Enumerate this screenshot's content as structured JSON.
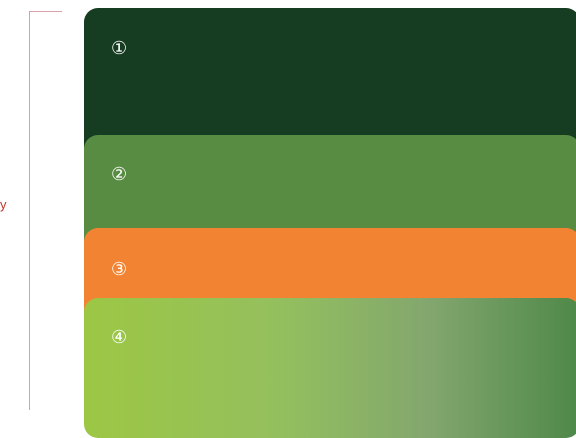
{
  "side_label": "y",
  "colors": {
    "bracket": "#d9a0a8",
    "layer1": "#163c21",
    "layer2": "#588c42",
    "layer3": "#f28332",
    "layer4_start": "#9cc744",
    "layer4_end": "#4e8848"
  },
  "layers": [
    {
      "label": "①"
    },
    {
      "label": "②"
    },
    {
      "label": "③"
    },
    {
      "label": "④"
    }
  ]
}
